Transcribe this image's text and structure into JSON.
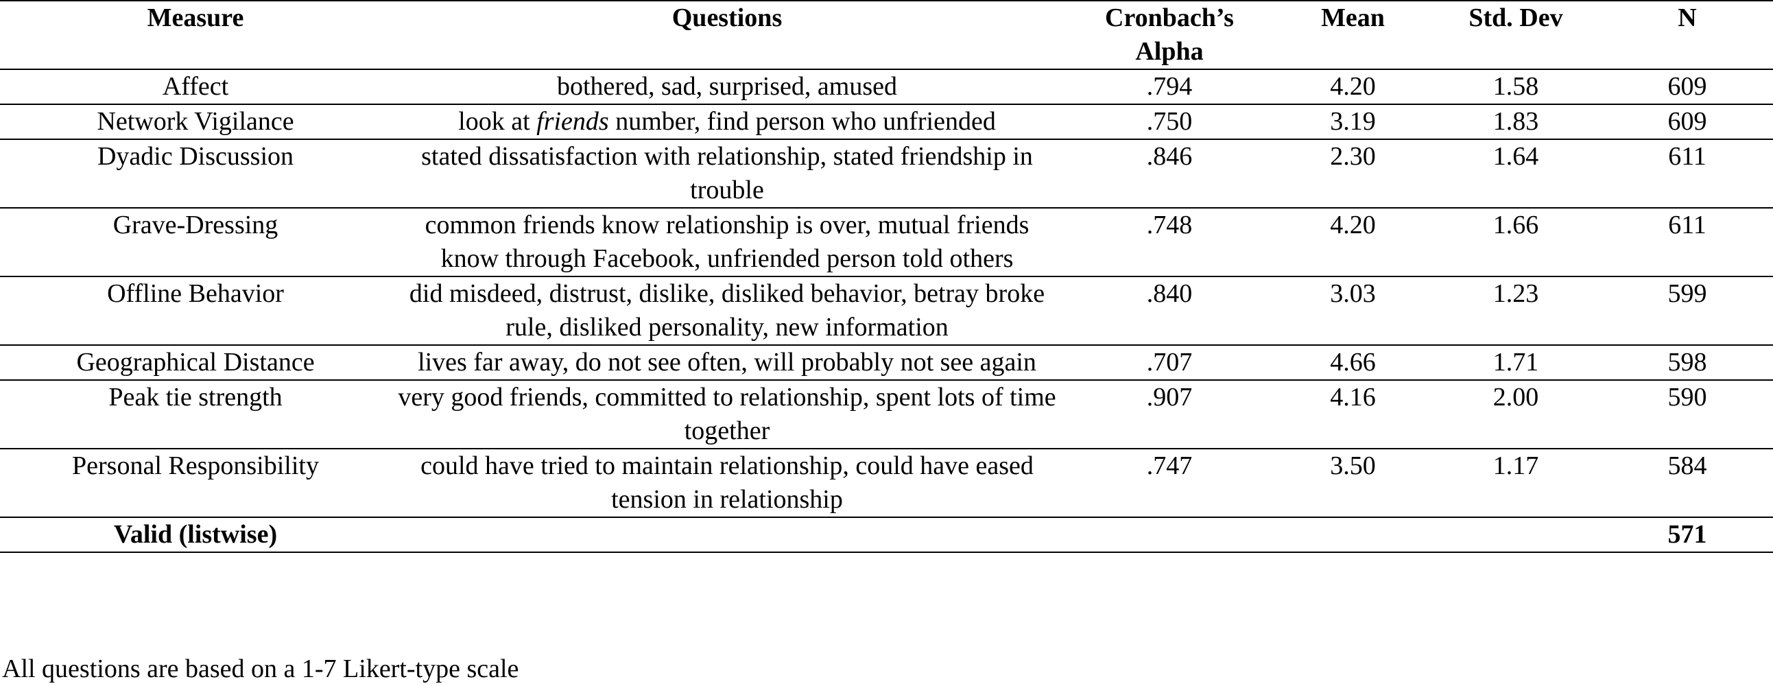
{
  "table": {
    "headers": {
      "measure": "Measure",
      "questions": "Questions",
      "alpha": "Cronbach’s Alpha",
      "mean": "Mean",
      "sd": "Std. Dev",
      "n": "N"
    },
    "rows": [
      {
        "measure": "Affect",
        "questions": "bothered, sad, surprised, amused",
        "alpha": ".794",
        "mean": "4.20",
        "sd": "1.58",
        "n": "609"
      },
      {
        "measure": "Network Vigilance",
        "questions_pre": "look at ",
        "questions_em": "friends",
        "questions_post": " number, find person who unfriended",
        "alpha": ".750",
        "mean": "3.19",
        "sd": "1.83",
        "n": "609"
      },
      {
        "measure": "Dyadic Discussion",
        "questions": "stated dissatisfaction with relationship, stated friendship in trouble",
        "alpha": ".846",
        "mean": "2.30",
        "sd": "1.64",
        "n": "611"
      },
      {
        "measure": "Grave-Dressing",
        "questions": "common friends know relationship is over, mutual friends know through Facebook, unfriended person told others",
        "alpha": ".748",
        "mean": "4.20",
        "sd": "1.66",
        "n": "611"
      },
      {
        "measure": "Offline Behavior",
        "questions": "did misdeed, distrust, dislike, disliked behavior, betray broke rule, disliked personality, new information",
        "alpha": ".840",
        "mean": "3.03",
        "sd": "1.23",
        "n": "599"
      },
      {
        "measure": "Geographical Distance",
        "questions": "lives far away, do not see often, will probably not see again",
        "alpha": ".707",
        "mean": "4.66",
        "sd": "1.71",
        "n": "598"
      },
      {
        "measure": "Peak tie strength",
        "questions": "very good friends, committed to relationship, spent lots of time together",
        "alpha": ".907",
        "mean": "4.16",
        "sd": "2.00",
        "n": "590"
      },
      {
        "measure": "Personal Responsibility",
        "questions": "could have tried to maintain relationship, could have eased tension in relationship",
        "alpha": ".747",
        "mean": "3.50",
        "sd": "1.17",
        "n": "584"
      }
    ],
    "valid": {
      "label": "Valid (listwise)",
      "n": "571"
    }
  },
  "footnote": "All questions are based on a 1-7 Likert-type scale"
}
